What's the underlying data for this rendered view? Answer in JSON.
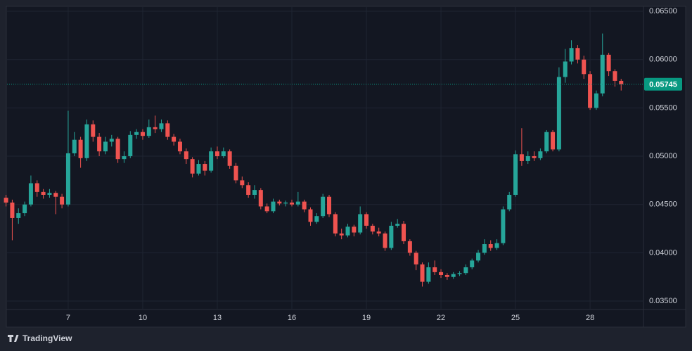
{
  "chart_data": {
    "type": "candlestick",
    "x": [
      4.5,
      4.75,
      5,
      5.25,
      5.5,
      5.75,
      6,
      6.25,
      6.5,
      6.75,
      7,
      7.25,
      7.5,
      7.75,
      8,
      8.25,
      8.5,
      8.75,
      9,
      9.25,
      9.5,
      9.75,
      10,
      10.25,
      10.5,
      10.75,
      11,
      11.25,
      11.5,
      11.75,
      12,
      12.25,
      12.5,
      12.75,
      13,
      13.25,
      13.5,
      13.75,
      14,
      14.25,
      14.5,
      14.75,
      15,
      15.25,
      15.5,
      15.75,
      16,
      16.25,
      16.5,
      16.75,
      17,
      17.25,
      17.5,
      17.75,
      18,
      18.25,
      18.5,
      18.75,
      19,
      19.25,
      19.5,
      19.75,
      20,
      20.25,
      20.5,
      20.75,
      21,
      21.25,
      21.5,
      21.75,
      22,
      22.25,
      22.5,
      22.75,
      23,
      23.25,
      23.5,
      23.75,
      24,
      24.25,
      24.5,
      24.75,
      25,
      25.25,
      25.5,
      25.75,
      26,
      26.25,
      26.5,
      26.75,
      27,
      27.25,
      27.5,
      27.75,
      28,
      28.25,
      28.5,
      28.75,
      29,
      29.25
    ],
    "ohlc": [
      [
        0.0457,
        0.046,
        0.0448,
        0.0452
      ],
      [
        0.0452,
        0.0455,
        0.0413,
        0.0436
      ],
      [
        0.0436,
        0.0446,
        0.043,
        0.0441
      ],
      [
        0.0441,
        0.0453,
        0.0438,
        0.045
      ],
      [
        0.045,
        0.048,
        0.0448,
        0.0472
      ],
      [
        0.0472,
        0.0475,
        0.0458,
        0.0463
      ],
      [
        0.0463,
        0.0466,
        0.0456,
        0.046
      ],
      [
        0.046,
        0.0466,
        0.0457,
        0.0462
      ],
      [
        0.0462,
        0.0464,
        0.044,
        0.0458
      ],
      [
        0.0458,
        0.0461,
        0.0446,
        0.045
      ],
      [
        0.045,
        0.0547,
        0.0448,
        0.0503
      ],
      [
        0.0503,
        0.0525,
        0.05,
        0.0517
      ],
      [
        0.0517,
        0.052,
        0.0488,
        0.0498
      ],
      [
        0.0498,
        0.0538,
        0.0495,
        0.0533
      ],
      [
        0.0533,
        0.0537,
        0.0515,
        0.052
      ],
      [
        0.052,
        0.0524,
        0.05,
        0.0505
      ],
      [
        0.0505,
        0.052,
        0.0502,
        0.0515
      ],
      [
        0.0515,
        0.0522,
        0.051,
        0.0518
      ],
      [
        0.0518,
        0.052,
        0.0493,
        0.0497
      ],
      [
        0.0497,
        0.0505,
        0.0493,
        0.05
      ],
      [
        0.05,
        0.0526,
        0.0498,
        0.0522
      ],
      [
        0.0522,
        0.0528,
        0.0518,
        0.0525
      ],
      [
        0.0525,
        0.0528,
        0.0517,
        0.0521
      ],
      [
        0.0521,
        0.0538,
        0.0519,
        0.053
      ],
      [
        0.053,
        0.0542,
        0.0524,
        0.0528
      ],
      [
        0.0528,
        0.0538,
        0.0525,
        0.0534
      ],
      [
        0.0534,
        0.0537,
        0.0517,
        0.052
      ],
      [
        0.052,
        0.0523,
        0.0511,
        0.0515
      ],
      [
        0.0515,
        0.0518,
        0.0502,
        0.0505
      ],
      [
        0.0505,
        0.0508,
        0.0492,
        0.0497
      ],
      [
        0.0497,
        0.0499,
        0.0478,
        0.0482
      ],
      [
        0.0482,
        0.0496,
        0.048,
        0.0492
      ],
      [
        0.0492,
        0.0495,
        0.048,
        0.0485
      ],
      [
        0.0485,
        0.0509,
        0.0483,
        0.0505
      ],
      [
        0.0505,
        0.051,
        0.0497,
        0.05
      ],
      [
        0.05,
        0.0509,
        0.0498,
        0.0505
      ],
      [
        0.0505,
        0.0507,
        0.0487,
        0.049
      ],
      [
        0.049,
        0.0493,
        0.0472,
        0.0475
      ],
      [
        0.0475,
        0.0479,
        0.0467,
        0.047
      ],
      [
        0.047,
        0.0473,
        0.0457,
        0.046
      ],
      [
        0.046,
        0.047,
        0.0456,
        0.0465
      ],
      [
        0.0465,
        0.0467,
        0.0445,
        0.0448
      ],
      [
        0.0448,
        0.0451,
        0.0441,
        0.0443
      ],
      [
        0.0443,
        0.0456,
        0.0441,
        0.0453
      ],
      [
        0.0453,
        0.0455,
        0.0449,
        0.0451
      ],
      [
        0.0451,
        0.0454,
        0.0448,
        0.0452
      ],
      [
        0.0452,
        0.0455,
        0.0448,
        0.045
      ],
      [
        0.045,
        0.0463,
        0.0448,
        0.0453
      ],
      [
        0.0453,
        0.0455,
        0.0442,
        0.0445
      ],
      [
        0.0445,
        0.0447,
        0.0428,
        0.0432
      ],
      [
        0.0432,
        0.0441,
        0.043,
        0.0438
      ],
      [
        0.0438,
        0.0461,
        0.0436,
        0.0458
      ],
      [
        0.0458,
        0.046,
        0.0437,
        0.044
      ],
      [
        0.044,
        0.0442,
        0.0417,
        0.042
      ],
      [
        0.042,
        0.0425,
        0.0414,
        0.0418
      ],
      [
        0.0418,
        0.043,
        0.0416,
        0.0427
      ],
      [
        0.0427,
        0.0429,
        0.0417,
        0.0421
      ],
      [
        0.0421,
        0.0448,
        0.0419,
        0.044
      ],
      [
        0.044,
        0.0442,
        0.0425,
        0.0428
      ],
      [
        0.0428,
        0.043,
        0.0419,
        0.0422
      ],
      [
        0.0422,
        0.0426,
        0.0417,
        0.042
      ],
      [
        0.042,
        0.0422,
        0.0402,
        0.0405
      ],
      [
        0.0405,
        0.0432,
        0.0403,
        0.0428
      ],
      [
        0.0428,
        0.0435,
        0.0426,
        0.043
      ],
      [
        0.043,
        0.0433,
        0.0409,
        0.0412
      ],
      [
        0.0412,
        0.0414,
        0.0397,
        0.04
      ],
      [
        0.04,
        0.0402,
        0.0382,
        0.0388
      ],
      [
        0.0388,
        0.039,
        0.0365,
        0.037
      ],
      [
        0.037,
        0.039,
        0.0368,
        0.0385
      ],
      [
        0.0385,
        0.0392,
        0.0377,
        0.038
      ],
      [
        0.038,
        0.0383,
        0.0374,
        0.0377
      ],
      [
        0.0377,
        0.0379,
        0.0372,
        0.0375
      ],
      [
        0.0375,
        0.038,
        0.0373,
        0.0378
      ],
      [
        0.0378,
        0.0381,
        0.0376,
        0.0379
      ],
      [
        0.0379,
        0.0388,
        0.0377,
        0.0385
      ],
      [
        0.0385,
        0.0394,
        0.0383,
        0.0392
      ],
      [
        0.0392,
        0.0403,
        0.039,
        0.04
      ],
      [
        0.04,
        0.0414,
        0.0398,
        0.0409
      ],
      [
        0.0409,
        0.0413,
        0.0402,
        0.0405
      ],
      [
        0.0405,
        0.0414,
        0.0403,
        0.041
      ],
      [
        0.041,
        0.0448,
        0.0408,
        0.0445
      ],
      [
        0.0445,
        0.0463,
        0.0443,
        0.046
      ],
      [
        0.046,
        0.0506,
        0.0458,
        0.0502
      ],
      [
        0.0502,
        0.0529,
        0.049,
        0.0495
      ],
      [
        0.0495,
        0.0505,
        0.0492,
        0.05
      ],
      [
        0.05,
        0.0505,
        0.0495,
        0.0498
      ],
      [
        0.0498,
        0.0508,
        0.0496,
        0.0505
      ],
      [
        0.0505,
        0.0527,
        0.0503,
        0.0525
      ],
      [
        0.0525,
        0.0527,
        0.0505,
        0.0507
      ],
      [
        0.0507,
        0.0592,
        0.0505,
        0.0582
      ],
      [
        0.0582,
        0.0611,
        0.0576,
        0.0598
      ],
      [
        0.0598,
        0.062,
        0.0595,
        0.0612
      ],
      [
        0.0612,
        0.0615,
        0.0596,
        0.06
      ],
      [
        0.06,
        0.0604,
        0.058,
        0.0585
      ],
      [
        0.0585,
        0.0588,
        0.0548,
        0.055
      ],
      [
        0.055,
        0.0568,
        0.0548,
        0.0565
      ],
      [
        0.0565,
        0.0627,
        0.0562,
        0.0605
      ],
      [
        0.0605,
        0.0607,
        0.0583,
        0.0588
      ],
      [
        0.0588,
        0.059,
        0.0572,
        0.0578
      ],
      [
        0.0578,
        0.058,
        0.0568,
        0.05745
      ]
    ],
    "up_color": "#26a69a",
    "down_color": "#ef5350",
    "xlim": [
      4.54,
      30.12
    ],
    "xticks": [
      7,
      10,
      13,
      16,
      19,
      22,
      25,
      28
    ],
    "ylim": [
      0.03413,
      0.06544
    ],
    "yticks": [
      {
        "value": 0.035,
        "label": "0.03500"
      },
      {
        "value": 0.04,
        "label": "0.04000"
      },
      {
        "value": 0.045,
        "label": "0.04500"
      },
      {
        "value": 0.05,
        "label": "0.05000"
      },
      {
        "value": 0.055,
        "label": "0.05500"
      },
      {
        "value": 0.06,
        "label": "0.06000"
      },
      {
        "value": 0.065,
        "label": "0.06500"
      }
    ],
    "grid": true,
    "last_price": 0.05745,
    "last_price_color": "#089981",
    "brand": "TradingView"
  }
}
